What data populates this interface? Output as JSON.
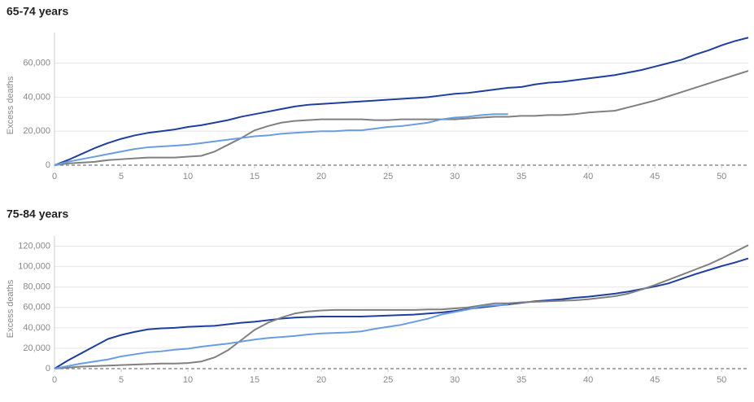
{
  "chart_data": [
    {
      "type": "line",
      "title": "65-74 years",
      "ylabel": "Excess deaths",
      "x": [
        0,
        1,
        2,
        3,
        4,
        5,
        6,
        7,
        8,
        9,
        10,
        11,
        12,
        13,
        14,
        15,
        16,
        17,
        18,
        19,
        20,
        21,
        22,
        23,
        24,
        25,
        26,
        27,
        28,
        29,
        30,
        31,
        32,
        33,
        34,
        35,
        36,
        37,
        38,
        39,
        40,
        41,
        42,
        43,
        44,
        45,
        46,
        47,
        48,
        49,
        50,
        51,
        52
      ],
      "xlim": [
        0,
        52
      ],
      "xticks": [
        0,
        5,
        10,
        15,
        20,
        25,
        30,
        35,
        40,
        45,
        50
      ],
      "ylim": [
        0,
        78000
      ],
      "yticks": [
        0,
        {
          "value": 20000,
          "label": "20,000"
        },
        {
          "value": 40000,
          "label": "40,000"
        },
        {
          "value": 60000,
          "label": "60,000"
        }
      ],
      "grid": true,
      "series": [
        {
          "color": "#1f3f9f",
          "values": [
            0,
            3000,
            6500,
            10000,
            13000,
            15500,
            17500,
            19000,
            20000,
            21000,
            22500,
            23500,
            25000,
            26500,
            28500,
            30000,
            31500,
            33000,
            34500,
            35500,
            36000,
            36500,
            37000,
            37500,
            38000,
            38500,
            39000,
            39500,
            40000,
            41000,
            42000,
            42500,
            43500,
            44500,
            45500,
            46000,
            47500,
            48500,
            49000,
            50000,
            51000,
            52000,
            53000,
            54500,
            56000,
            58000,
            60000,
            62000,
            65000,
            67500,
            70500,
            73000,
            75000
          ]
        },
        {
          "color": "#808080",
          "values": [
            0,
            1000,
            1500,
            2000,
            3000,
            3500,
            4000,
            4500,
            4500,
            4500,
            5000,
            5500,
            8000,
            12000,
            16000,
            20500,
            23000,
            25000,
            26000,
            26500,
            27000,
            27000,
            27000,
            27000,
            26500,
            26500,
            27000,
            27000,
            27000,
            27000,
            27000,
            27500,
            28000,
            28500,
            28500,
            29000,
            29000,
            29500,
            29500,
            30000,
            31000,
            31500,
            32000,
            34000,
            36000,
            38000,
            40500,
            43000,
            45500,
            48000,
            50500,
            53000,
            55500
          ]
        },
        {
          "color": "#6a9de0",
          "values": [
            0,
            2000,
            3500,
            5000,
            6500,
            8000,
            9500,
            10500,
            11000,
            11500,
            12000,
            13000,
            14000,
            15000,
            16000,
            17000,
            17500,
            18500,
            19000,
            19500,
            20000,
            20000,
            20500,
            20500,
            21500,
            22500,
            23000,
            24000,
            25000,
            27000,
            28000,
            28500,
            29500,
            30000,
            30000,
            null,
            null,
            null,
            null,
            null,
            null,
            null,
            null,
            null,
            null,
            null,
            null,
            null,
            null,
            null,
            null,
            null,
            null
          ]
        }
      ]
    },
    {
      "type": "line",
      "title": "75-84 years",
      "ylabel": "Excess deaths",
      "x": [
        0,
        1,
        2,
        3,
        4,
        5,
        6,
        7,
        8,
        9,
        10,
        11,
        12,
        13,
        14,
        15,
        16,
        17,
        18,
        19,
        20,
        21,
        22,
        23,
        24,
        25,
        26,
        27,
        28,
        29,
        30,
        31,
        32,
        33,
        34,
        35,
        36,
        37,
        38,
        39,
        40,
        41,
        42,
        43,
        44,
        45,
        46,
        47,
        48,
        49,
        50,
        51,
        52
      ],
      "xlim": [
        0,
        52
      ],
      "xticks": [
        0,
        5,
        10,
        15,
        20,
        25,
        30,
        35,
        40,
        45,
        50
      ],
      "ylim": [
        0,
        130000
      ],
      "yticks": [
        0,
        {
          "value": 20000,
          "label": "20,000"
        },
        {
          "value": 40000,
          "label": "40,000"
        },
        {
          "value": 60000,
          "label": "60,000"
        },
        {
          "value": 80000,
          "label": "80,000"
        },
        {
          "value": 100000,
          "label": "100,000"
        },
        {
          "value": 120000,
          "label": "120,000"
        }
      ],
      "grid": true,
      "series": [
        {
          "color": "#1f3f9f",
          "values": [
            0,
            8000,
            15000,
            22000,
            29000,
            33000,
            36000,
            38500,
            39500,
            40000,
            41000,
            41500,
            42000,
            43500,
            45000,
            46000,
            47500,
            49000,
            50000,
            50500,
            51000,
            51000,
            51000,
            51000,
            51500,
            52000,
            52500,
            53000,
            54000,
            55000,
            56500,
            58500,
            60000,
            61500,
            63000,
            64500,
            66000,
            67000,
            68000,
            69500,
            70500,
            72000,
            73500,
            75500,
            78000,
            80500,
            83500,
            88000,
            92500,
            96500,
            100500,
            104000,
            108000
          ]
        },
        {
          "color": "#808080",
          "values": [
            0,
            1000,
            2000,
            2500,
            3000,
            3500,
            4000,
            4500,
            5000,
            5000,
            5500,
            7000,
            11000,
            18000,
            28000,
            38000,
            45000,
            50000,
            54000,
            56000,
            57000,
            57500,
            57500,
            57500,
            57500,
            57500,
            57500,
            57500,
            58000,
            58000,
            59000,
            60000,
            62000,
            64000,
            64000,
            65000,
            65500,
            66000,
            66500,
            67000,
            68000,
            69500,
            71000,
            73500,
            77500,
            82000,
            87000,
            92000,
            97000,
            102000,
            108000,
            114500,
            121000
          ]
        },
        {
          "color": "#6a9de0",
          "values": [
            0,
            2500,
            5000,
            7000,
            9000,
            12000,
            14000,
            16000,
            17000,
            18500,
            19500,
            21500,
            23000,
            24500,
            26500,
            28500,
            30000,
            31000,
            32000,
            33500,
            34500,
            35000,
            35500,
            36500,
            39000,
            41000,
            43000,
            46000,
            49000,
            53000,
            55500,
            58000,
            61000,
            62000,
            62500,
            null,
            null,
            null,
            null,
            null,
            null,
            null,
            null,
            null,
            null,
            null,
            null,
            null,
            null,
            null,
            null,
            null,
            null
          ]
        }
      ]
    }
  ]
}
